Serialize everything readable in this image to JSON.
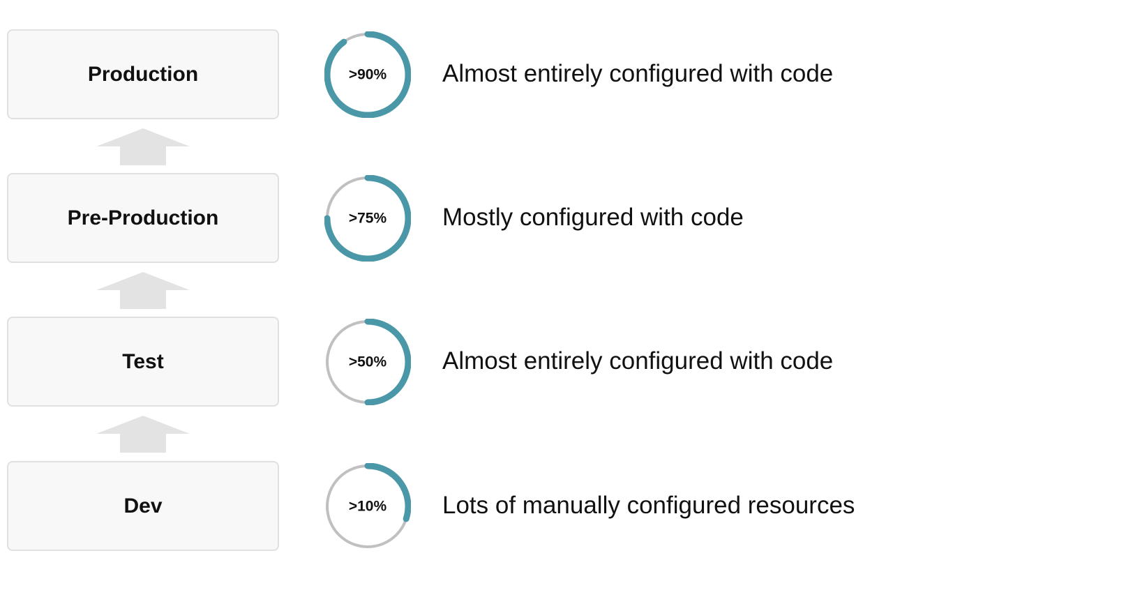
{
  "colors": {
    "arc_fill": "#4a97a8",
    "arc_track": "#c0c0c0",
    "box_background": "#f8f8f8",
    "box_border": "#e0e0e0",
    "arrow": "#e3e3e3",
    "text": "#111111"
  },
  "stages": [
    {
      "label": "Production",
      "percent_label": ">90%",
      "fraction": 0.9,
      "description": "Almost entirely configured with code"
    },
    {
      "label": "Pre-Production",
      "percent_label": ">75%",
      "fraction": 0.75,
      "description": "Mostly configured with code"
    },
    {
      "label": "Test",
      "percent_label": ">50%",
      "fraction": 0.5,
      "description": "Almost entirely configured with code"
    },
    {
      "label": "Dev",
      "percent_label": ">10%",
      "fraction": 0.3,
      "description": "Lots of manually configured resources"
    }
  ]
}
